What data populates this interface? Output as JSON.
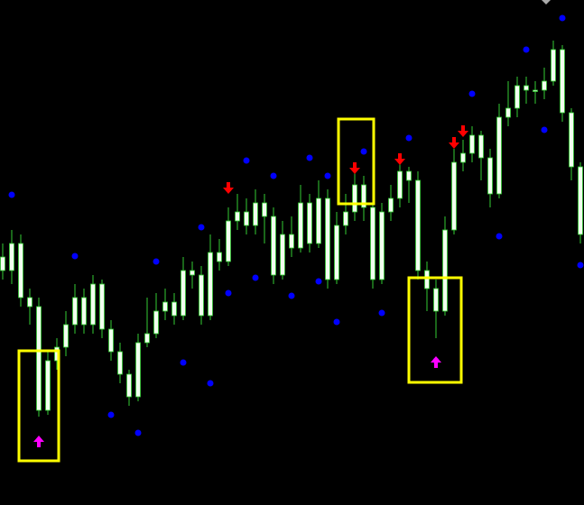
{
  "chart_data": {
    "type": "candlestick",
    "xlim": [
      -0.3,
      64.4
    ],
    "ylim": [
      0,
      560
    ],
    "up_color": "#f2fff0",
    "down_color": "#f2fff0",
    "wick_color": "#33cc33",
    "open": [
      275,
      260,
      290,
      230,
      220,
      105,
      160,
      175,
      200,
      230,
      200,
      245,
      195,
      170,
      145,
      120,
      180,
      190,
      215,
      225,
      210,
      260,
      255,
      210,
      280,
      270,
      315,
      325,
      310,
      335,
      320,
      255,
      300,
      285,
      335,
      290,
      340,
      250,
      310,
      325,
      355,
      330,
      250,
      325,
      340,
      370,
      360,
      260,
      240,
      215,
      305,
      380,
      390,
      410,
      385,
      345,
      430,
      440,
      465,
      460,
      460,
      470,
      505,
      435,
      375
    ],
    "high": [
      290,
      305,
      300,
      240,
      230,
      170,
      185,
      215,
      245,
      240,
      255,
      250,
      205,
      180,
      150,
      190,
      230,
      235,
      240,
      235,
      275,
      270,
      265,
      300,
      295,
      330,
      345,
      340,
      350,
      345,
      330,
      315,
      320,
      355,
      345,
      360,
      350,
      325,
      345,
      370,
      365,
      340,
      335,
      355,
      380,
      375,
      370,
      270,
      250,
      320,
      395,
      405,
      420,
      415,
      395,
      445,
      470,
      475,
      475,
      470,
      485,
      515,
      510,
      440,
      380
    ],
    "low": [
      250,
      245,
      220,
      200,
      98,
      100,
      150,
      165,
      190,
      190,
      190,
      185,
      160,
      135,
      110,
      115,
      175,
      185,
      205,
      200,
      205,
      240,
      200,
      205,
      260,
      265,
      305,
      300,
      300,
      290,
      245,
      250,
      275,
      280,
      280,
      285,
      240,
      245,
      300,
      315,
      315,
      240,
      245,
      315,
      330,
      335,
      250,
      215,
      185,
      210,
      300,
      370,
      380,
      360,
      330,
      340,
      420,
      430,
      445,
      445,
      450,
      465,
      425,
      360,
      290
    ],
    "close": [
      260,
      290,
      230,
      220,
      105,
      160,
      175,
      200,
      230,
      200,
      245,
      195,
      170,
      145,
      120,
      180,
      190,
      215,
      225,
      210,
      260,
      255,
      210,
      280,
      270,
      315,
      325,
      310,
      335,
      320,
      255,
      300,
      285,
      335,
      290,
      340,
      250,
      310,
      325,
      355,
      330,
      250,
      325,
      340,
      370,
      360,
      260,
      240,
      215,
      305,
      380,
      390,
      410,
      385,
      345,
      430,
      440,
      465,
      460,
      460,
      470,
      505,
      435,
      375,
      300
    ],
    "sar": {
      "color": "#0000ff",
      "values": [
        null,
        344,
        null,
        null,
        null,
        null,
        null,
        null,
        276,
        null,
        null,
        null,
        100,
        null,
        null,
        80,
        null,
        270,
        null,
        null,
        158,
        null,
        308,
        135,
        null,
        235,
        null,
        382,
        252,
        null,
        365,
        null,
        232,
        null,
        385,
        248,
        365,
        203,
        null,
        null,
        392,
        null,
        213,
        null,
        null,
        407,
        null,
        null,
        160,
        null,
        null,
        null,
        456,
        null,
        null,
        298,
        null,
        null,
        505,
        null,
        416,
        null,
        540,
        null,
        266
      ]
    },
    "up_signals": {
      "color": "#ff00ff",
      "x": [
        4,
        48
      ],
      "values": [
        70,
        158
      ]
    },
    "down_signals": {
      "color": "#ff0000",
      "x": [
        25,
        39,
        44,
        50,
        51
      ],
      "values": [
        352,
        374,
        384,
        402,
        415
      ]
    }
  }
}
